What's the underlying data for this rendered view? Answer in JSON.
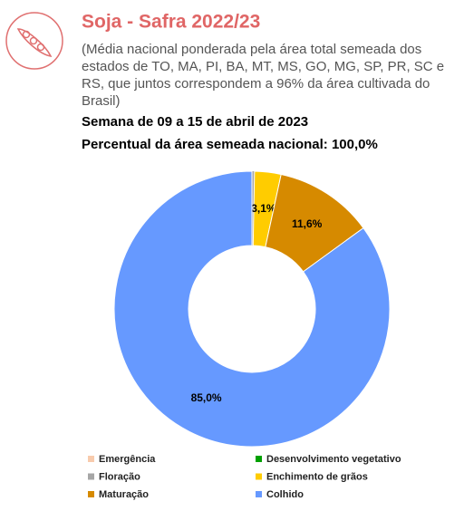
{
  "header": {
    "title": "Soja - Safra 2022/23",
    "subtitle_lines": [
      "(Média nacional ponderada pela área total semeada dos",
      "estados de TO, MA, PI, BA, MT, MS, GO, MG, SP, PR, SC e",
      "RS, que juntos correspondem a 96% da área cultivada do",
      "Brasil)"
    ]
  },
  "chart_data": {
    "type": "pie",
    "title": "Semana de 09 a 15 de abril de 2023",
    "subtitle": "Percentual da área semeada nacional: 100,0%",
    "categories": [
      "Emergência",
      "Desenvolvimento vegetativo",
      "Floração",
      "Enchimento de grãos",
      "Maturação",
      "Colhido"
    ],
    "values": [
      0,
      0,
      0.3,
      3.1,
      11.6,
      85.0
    ],
    "value_labels": [
      null,
      null,
      null,
      "3,1%",
      "11,6%",
      "85,0%"
    ],
    "colors": [
      "#f8cbad",
      "#00a000",
      "#a6a6a6",
      "#ffcc00",
      "#d68a00",
      "#6699ff"
    ]
  }
}
